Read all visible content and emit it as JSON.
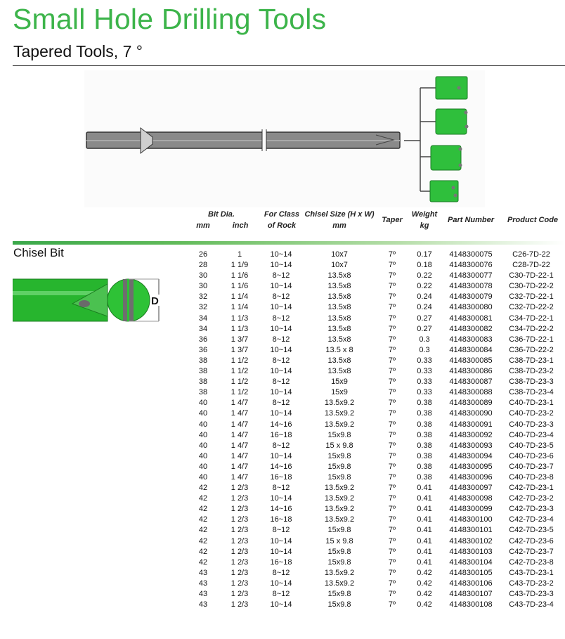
{
  "header": {
    "title": "Small Hole Drilling Tools",
    "subtitle": "Tapered Tools, 7 °"
  },
  "colors": {
    "brand_green": "#3cb44a"
  },
  "table": {
    "headers": {
      "bit_dia": "Bit Dia.",
      "mm": "mm",
      "inch": "inch",
      "rock_1": "For Class",
      "rock_2": "of Rock",
      "chisel_1": "Chisel Size (H x W)",
      "chisel_2": "mm",
      "taper": "Taper",
      "weight_1": "Weight",
      "weight_2": "kg",
      "part": "Part Number",
      "code": "Product Code"
    },
    "rows": [
      [
        "26",
        "1",
        "10~14",
        "10x7",
        "7º",
        "0.17",
        "4148300075",
        "C26-7D-22"
      ],
      [
        "28",
        "1 1/9",
        "10~14",
        "10x7",
        "7º",
        "0.18",
        "4148300076",
        "C28-7D-22"
      ],
      [
        "30",
        "1 1/6",
        "8~12",
        "13.5x8",
        "7º",
        "0.22",
        "4148300077",
        "C30-7D-22-1"
      ],
      [
        "30",
        "1 1/6",
        "10~14",
        "13.5x8",
        "7º",
        "0.22",
        "4148300078",
        "C30-7D-22-2"
      ],
      [
        "32",
        "1 1/4",
        "8~12",
        "13.5x8",
        "7º",
        "0.24",
        "4148300079",
        "C32-7D-22-1"
      ],
      [
        "32",
        "1 1/4",
        "10~14",
        "13.5x8",
        "7º",
        "0.24",
        "4148300080",
        "C32-7D-22-2"
      ],
      [
        "34",
        "1 1/3",
        "8~12",
        "13.5x8",
        "7º",
        "0.27",
        "4148300081",
        "C34-7D-22-1"
      ],
      [
        "34",
        "1 1/3",
        "10~14",
        "13.5x8",
        "7º",
        "0.27",
        "4148300082",
        "C34-7D-22-2"
      ],
      [
        "36",
        "1 3/7",
        "8~12",
        "13.5x8",
        "7º",
        "0.3",
        "4148300083",
        "C36-7D-22-1"
      ],
      [
        "36",
        "1 3/7",
        "10~14",
        "13.5 x 8",
        "7º",
        "0.3",
        "4148300084",
        "C36-7D-22-2"
      ],
      [
        "38",
        "1 1/2",
        "8~12",
        "13.5x8",
        "7º",
        "0.33",
        "4148300085",
        "C38-7D-23-1"
      ],
      [
        "38",
        "1 1/2",
        "10~14",
        "13.5x8",
        "7º",
        "0.33",
        "4148300086",
        "C38-7D-23-2"
      ],
      [
        "38",
        "1 1/2",
        "8~12",
        "15x9",
        "7º",
        "0.33",
        "4148300087",
        "C38-7D-23-3"
      ],
      [
        "38",
        "1 1/2",
        "10~14",
        "15x9",
        "7º",
        "0.33",
        "4148300088",
        "C38-7D-23-4"
      ],
      [
        "40",
        "1 4/7",
        "8~12",
        "13.5x9.2",
        "7º",
        "0.38",
        "4148300089",
        "C40-7D-23-1"
      ],
      [
        "40",
        "1 4/7",
        "10~14",
        "13.5x9.2",
        "7º",
        "0.38",
        "4148300090",
        "C40-7D-23-2"
      ],
      [
        "40",
        "1 4/7",
        "14~16",
        "13.5x9.2",
        "7º",
        "0.38",
        "4148300091",
        "C40-7D-23-3"
      ],
      [
        "40",
        "1 4/7",
        "16~18",
        "15x9.8",
        "7º",
        "0.38",
        "4148300092",
        "C40-7D-23-4"
      ],
      [
        "40",
        "1 4/7",
        "8~12",
        "15 x 9.8",
        "7º",
        "0.38",
        "4148300093",
        "C40-7D-23-5"
      ],
      [
        "40",
        "1 4/7",
        "10~14",
        "15x9.8",
        "7º",
        "0.38",
        "4148300094",
        "C40-7D-23-6"
      ],
      [
        "40",
        "1 4/7",
        "14~16",
        "15x9.8",
        "7º",
        "0.38",
        "4148300095",
        "C40-7D-23-7"
      ],
      [
        "40",
        "1 4/7",
        "16~18",
        "15x9.8",
        "7º",
        "0.38",
        "4148300096",
        "C40-7D-23-8"
      ],
      [
        "42",
        "1 2/3",
        "8~12",
        "13.5x9.2",
        "7º",
        "0.41",
        "4148300097",
        "C42-7D-23-1"
      ],
      [
        "42",
        "1 2/3",
        "10~14",
        "13.5x9.2",
        "7º",
        "0.41",
        "4148300098",
        "C42-7D-23-2"
      ],
      [
        "42",
        "1 2/3",
        "14~16",
        "13.5x9.2",
        "7º",
        "0.41",
        "4148300099",
        "C42-7D-23-3"
      ],
      [
        "42",
        "1 2/3",
        "16~18",
        "13.5x9.2",
        "7º",
        "0.41",
        "4148300100",
        "C42-7D-23-4"
      ],
      [
        "42",
        "1 2/3",
        "8~12",
        "15x9.8",
        "7º",
        "0.41",
        "4148300101",
        "C42-7D-23-5"
      ],
      [
        "42",
        "1 2/3",
        "10~14",
        "15 x 9.8",
        "7º",
        "0.41",
        "4148300102",
        "C42-7D-23-6"
      ],
      [
        "42",
        "1 2/3",
        "10~14",
        "15x9.8",
        "7º",
        "0.41",
        "4148300103",
        "C42-7D-23-7"
      ],
      [
        "42",
        "1 2/3",
        "16~18",
        "15x9.8",
        "7º",
        "0.41",
        "4148300104",
        "C42-7D-23-8"
      ],
      [
        "43",
        "1 2/3",
        "8~12",
        "13.5x9.2",
        "7º",
        "0.42",
        "4148300105",
        "C43-7D-23-1"
      ],
      [
        "43",
        "1 2/3",
        "10~14",
        "13.5x9.2",
        "7º",
        "0.42",
        "4148300106",
        "C43-7D-23-2"
      ],
      [
        "43",
        "1 2/3",
        "8~12",
        "15x9.8",
        "7º",
        "0.42",
        "4148300107",
        "C43-7D-23-3"
      ],
      [
        "43",
        "1 2/3",
        "10~14",
        "15x9.8",
        "7º",
        "0.42",
        "4148300108",
        "C43-7D-23-4"
      ]
    ]
  },
  "section": {
    "label": "Chisel Bit",
    "dimension_label": "D"
  }
}
